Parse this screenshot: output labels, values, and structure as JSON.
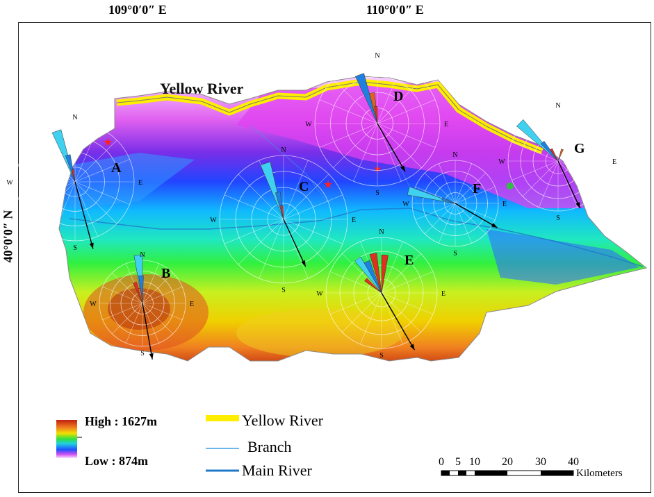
{
  "coords": {
    "top_left": "109°0′0″ E",
    "top_right": "110°0′0″ E",
    "left": "40°0′0″ N"
  },
  "map": {
    "river_label": "Yellow River",
    "stations": [
      {
        "id": "A"
      },
      {
        "id": "B"
      },
      {
        "id": "C"
      },
      {
        "id": "D"
      },
      {
        "id": "E"
      },
      {
        "id": "F"
      },
      {
        "id": "G"
      }
    ],
    "directions": {
      "n": "N",
      "s": "S",
      "e": "E",
      "w": "W"
    }
  },
  "legend": {
    "high": "High : 1627m",
    "low": "Low : 874m",
    "yellow_river": "Yellow River",
    "branch": "Branch",
    "main_river": "Main River",
    "colors": {
      "yellow_river": "#ffee00",
      "branch": "#3aa0e0",
      "main_river": "#1f78c8"
    }
  },
  "scale": {
    "ticks": [
      "0",
      "5",
      "10",
      "20",
      "30",
      "40"
    ],
    "unit": "Kilometers"
  }
}
